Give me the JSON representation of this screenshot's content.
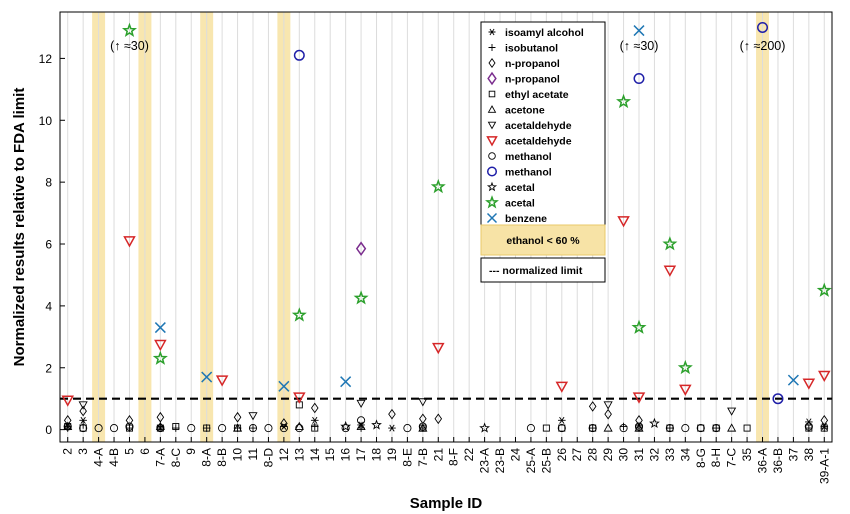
{
  "chart_data": {
    "type": "scatter",
    "xlabel": "Sample ID",
    "ylabel": "Normalized results relative to FDA limit",
    "ylim": [
      -0.4,
      13.5
    ],
    "yticks": [
      0,
      2,
      4,
      6,
      8,
      10,
      12
    ],
    "grid": "vertical",
    "legend_position": "top-right",
    "categories": [
      "2",
      "3",
      "4-A",
      "4-B",
      "5",
      "6",
      "7-A",
      "8-C",
      "9",
      "8-A",
      "8-B",
      "10",
      "11",
      "8-D",
      "12",
      "13",
      "14",
      "15",
      "16",
      "17",
      "18",
      "19",
      "8-E",
      "7-B",
      "21",
      "8-F",
      "22",
      "23-A",
      "23-B",
      "24",
      "25-A",
      "25-B",
      "26",
      "27",
      "28",
      "29",
      "30",
      "31",
      "32",
      "33",
      "34",
      "8-G",
      "8-H",
      "7-C",
      "35",
      "36-A",
      "36-B",
      "37",
      "38",
      "39-A-1"
    ],
    "highlighted_categories": [
      "4-A",
      "6",
      "8-A",
      "12",
      "36-A"
    ],
    "fda_limit": 1,
    "series": [
      {
        "name": "isoamyl alcohol",
        "marker": "asterisk",
        "color": "#000000",
        "points": [
          [
            "2",
            0.1
          ],
          [
            "3",
            0.3
          ],
          [
            "7-A",
            0.05
          ],
          [
            "12",
            0.1
          ],
          [
            "14",
            0.3
          ],
          [
            "17",
            0.15
          ],
          [
            "19",
            0.05
          ],
          [
            "26",
            0.3
          ],
          [
            "31",
            0.15
          ],
          [
            "38",
            0.25
          ],
          [
            "39-A-1",
            0.1
          ]
        ]
      },
      {
        "name": "isobutanol",
        "marker": "plus",
        "color": "#000000",
        "points": [
          [
            "2",
            0.05
          ],
          [
            "3",
            0.15
          ],
          [
            "5",
            0.05
          ],
          [
            "7-A",
            0.1
          ],
          [
            "8-C",
            0.05
          ],
          [
            "8-A",
            0.05
          ],
          [
            "10",
            0.05
          ],
          [
            "11",
            0.05
          ],
          [
            "14",
            0.1
          ],
          [
            "17",
            0.05
          ],
          [
            "7-B",
            0.05
          ],
          [
            "28",
            0.05
          ],
          [
            "30",
            0.1
          ],
          [
            "31",
            0.05
          ],
          [
            "33",
            0.05
          ],
          [
            "8-H",
            0.05
          ],
          [
            "38",
            0.05
          ],
          [
            "39-A-1",
            0.05
          ]
        ]
      },
      {
        "name": "n-propanol",
        "marker": "diamond",
        "color": "#000000",
        "points": [
          [
            "2",
            0.3
          ],
          [
            "3",
            0.6
          ],
          [
            "5",
            0.3
          ],
          [
            "7-A",
            0.4
          ],
          [
            "10",
            0.4
          ],
          [
            "12",
            0.2
          ],
          [
            "14",
            0.7
          ],
          [
            "19",
            0.5
          ],
          [
            "7-B",
            0.35
          ],
          [
            "21",
            0.35
          ],
          [
            "28",
            0.75
          ],
          [
            "29",
            0.5
          ],
          [
            "31",
            0.3
          ],
          [
            "39-A-1",
            0.3
          ]
        ]
      },
      {
        "name": "n-propanol",
        "marker": "diamond",
        "color": "#7B2D8E",
        "points": [
          [
            "17",
            5.85
          ]
        ]
      },
      {
        "name": "ethyl acetate",
        "marker": "square",
        "color": "#000000",
        "points": [
          [
            "2",
            0.1
          ],
          [
            "3",
            0.05
          ],
          [
            "5",
            0.05
          ],
          [
            "7-A",
            0.05
          ],
          [
            "8-C",
            0.1
          ],
          [
            "8-A",
            0.05
          ],
          [
            "10",
            0.05
          ],
          [
            "13",
            0.8
          ],
          [
            "14",
            0.05
          ],
          [
            "7-B",
            0.05
          ],
          [
            "25-B",
            0.05
          ],
          [
            "26",
            0.05
          ],
          [
            "28",
            0.05
          ],
          [
            "31",
            0.05
          ],
          [
            "33",
            0.05
          ],
          [
            "8-G",
            0.05
          ],
          [
            "8-H",
            0.05
          ],
          [
            "35",
            0.05
          ],
          [
            "38",
            0.05
          ],
          [
            "39-A-1",
            0.05
          ]
        ]
      },
      {
        "name": "acetone",
        "marker": "triangle-up",
        "color": "#000000",
        "points": [
          [
            "2",
            0.1
          ],
          [
            "7-A",
            0.1
          ],
          [
            "10",
            0.05
          ],
          [
            "13",
            0.1
          ],
          [
            "17",
            0.1
          ],
          [
            "7-B",
            0.05
          ],
          [
            "29",
            0.05
          ],
          [
            "31",
            0.05
          ],
          [
            "7-C",
            0.05
          ]
        ]
      },
      {
        "name": "acetaldehyde",
        "marker": "triangle-down",
        "color": "#000000",
        "points": [
          [
            "3",
            0.8
          ],
          [
            "11",
            0.45
          ],
          [
            "17",
            0.85
          ],
          [
            "7-B",
            0.9
          ],
          [
            "29",
            0.8
          ],
          [
            "7-C",
            0.6
          ]
        ]
      },
      {
        "name": "acetaldehyde",
        "marker": "triangle-down",
        "color": "#D62728",
        "points": [
          [
            "2",
            0.95
          ],
          [
            "5",
            6.1
          ],
          [
            "7-A",
            2.75
          ],
          [
            "8-B",
            1.6
          ],
          [
            "13",
            1.05
          ],
          [
            "21",
            2.65
          ],
          [
            "26",
            1.4
          ],
          [
            "30",
            6.75
          ],
          [
            "31",
            1.05
          ],
          [
            "33",
            5.15
          ],
          [
            "34",
            1.3
          ],
          [
            "38",
            1.5
          ],
          [
            "39-A-1",
            1.75
          ]
        ]
      },
      {
        "name": "methanol",
        "marker": "circle",
        "color": "#000000",
        "points": [
          [
            "2",
            0.1
          ],
          [
            "3",
            0.05
          ],
          [
            "4-A",
            0.05
          ],
          [
            "4-B",
            0.05
          ],
          [
            "5",
            0.1
          ],
          [
            "7-A",
            0.05
          ],
          [
            "9",
            0.05
          ],
          [
            "8-B",
            0.05
          ],
          [
            "11",
            0.05
          ],
          [
            "8-D",
            0.05
          ],
          [
            "12",
            0.05
          ],
          [
            "13",
            0.05
          ],
          [
            "16",
            0.05
          ],
          [
            "17",
            0.3
          ],
          [
            "8-E",
            0.05
          ],
          [
            "7-B",
            0.1
          ],
          [
            "25-A",
            0.05
          ],
          [
            "26",
            0.05
          ],
          [
            "28",
            0.05
          ],
          [
            "30",
            0.05
          ],
          [
            "31",
            0.1
          ],
          [
            "33",
            0.05
          ],
          [
            "34",
            0.05
          ],
          [
            "8-G",
            0.05
          ],
          [
            "8-H",
            0.05
          ],
          [
            "38",
            0.1
          ]
        ]
      },
      {
        "name": "methanol",
        "marker": "circle",
        "color": "#1F1FA8",
        "points": [
          [
            "13",
            12.1
          ],
          [
            "31",
            11.35
          ],
          [
            "36-A",
            13.0
          ],
          [
            "36-B",
            1.0
          ]
        ]
      },
      {
        "name": "acetal",
        "marker": "star",
        "color": "#000000",
        "points": [
          [
            "16",
            0.1
          ],
          [
            "18",
            0.15
          ],
          [
            "23-A",
            0.05
          ],
          [
            "32",
            0.2
          ]
        ]
      },
      {
        "name": "acetal",
        "marker": "star",
        "color": "#2CA02C",
        "points": [
          [
            "5",
            12.9
          ],
          [
            "7-A",
            2.3
          ],
          [
            "13",
            3.7
          ],
          [
            "17",
            4.25
          ],
          [
            "21",
            7.85
          ],
          [
            "30",
            10.6
          ],
          [
            "31",
            3.3
          ],
          [
            "33",
            6.0
          ],
          [
            "34",
            2.0
          ],
          [
            "39-A-1",
            4.5
          ]
        ]
      },
      {
        "name": "benzene",
        "marker": "x",
        "color": "#1F77B4",
        "points": [
          [
            "7-A",
            3.3
          ],
          [
            "8-A",
            1.7
          ],
          [
            "12",
            1.4
          ],
          [
            "16",
            1.55
          ],
          [
            "31",
            12.9
          ],
          [
            "37",
            1.6
          ]
        ]
      }
    ],
    "legend_extra": [
      {
        "label": "ethanol < 60 %",
        "type": "shaded-band"
      },
      {
        "label": "--- normalized limit",
        "type": "dashed-line"
      }
    ],
    "annotations": [
      {
        "category": "5",
        "text": "(↑ ≈30)",
        "y": 12.4
      },
      {
        "category": "31",
        "text": "(↑ ≈30)",
        "y": 12.4
      },
      {
        "category": "36-A",
        "text": "(↑ ≈200)",
        "y": 12.4
      }
    ]
  }
}
